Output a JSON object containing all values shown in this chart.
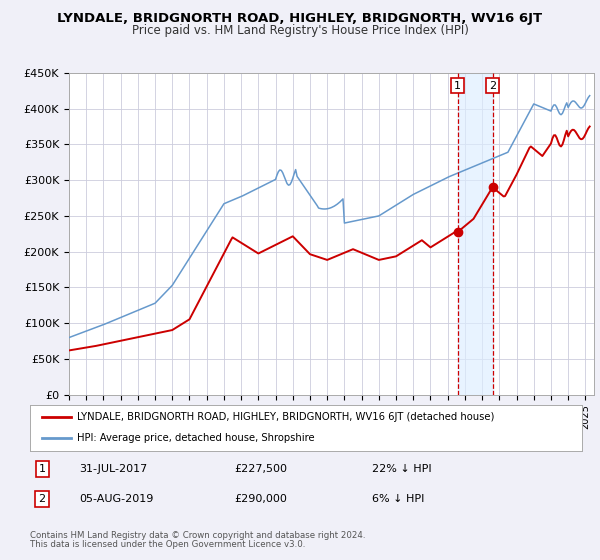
{
  "title": "LYNDALE, BRIDGNORTH ROAD, HIGHLEY, BRIDGNORTH, WV16 6JT",
  "subtitle": "Price paid vs. HM Land Registry's House Price Index (HPI)",
  "ylim": [
    0,
    450000
  ],
  "xlim_start": 1995.0,
  "xlim_end": 2025.5,
  "yticks": [
    0,
    50000,
    100000,
    150000,
    200000,
    250000,
    300000,
    350000,
    400000,
    450000
  ],
  "ytick_labels": [
    "£0",
    "£50K",
    "£100K",
    "£150K",
    "£200K",
    "£250K",
    "£300K",
    "£350K",
    "£400K",
    "£450K"
  ],
  "bg_color": "#f0f0f8",
  "plot_bg_color": "#ffffff",
  "grid_color": "#ccccdd",
  "legend_entries": [
    "LYNDALE, BRIDGNORTH ROAD, HIGHLEY, BRIDGNORTH, WV16 6JT (detached house)",
    "HPI: Average price, detached house, Shropshire"
  ],
  "sale1_date": 2017.58,
  "sale1_price": 227500,
  "sale2_date": 2019.61,
  "sale2_price": 290000,
  "annotation1": [
    "1",
    "31-JUL-2017",
    "£227,500",
    "22% ↓ HPI"
  ],
  "annotation2": [
    "2",
    "05-AUG-2019",
    "£290,000",
    "6% ↓ HPI"
  ],
  "footnote1": "Contains HM Land Registry data © Crown copyright and database right 2024.",
  "footnote2": "This data is licensed under the Open Government Licence v3.0.",
  "red_color": "#cc0000",
  "blue_color": "#6699cc",
  "shade_color": "#ddeeff"
}
